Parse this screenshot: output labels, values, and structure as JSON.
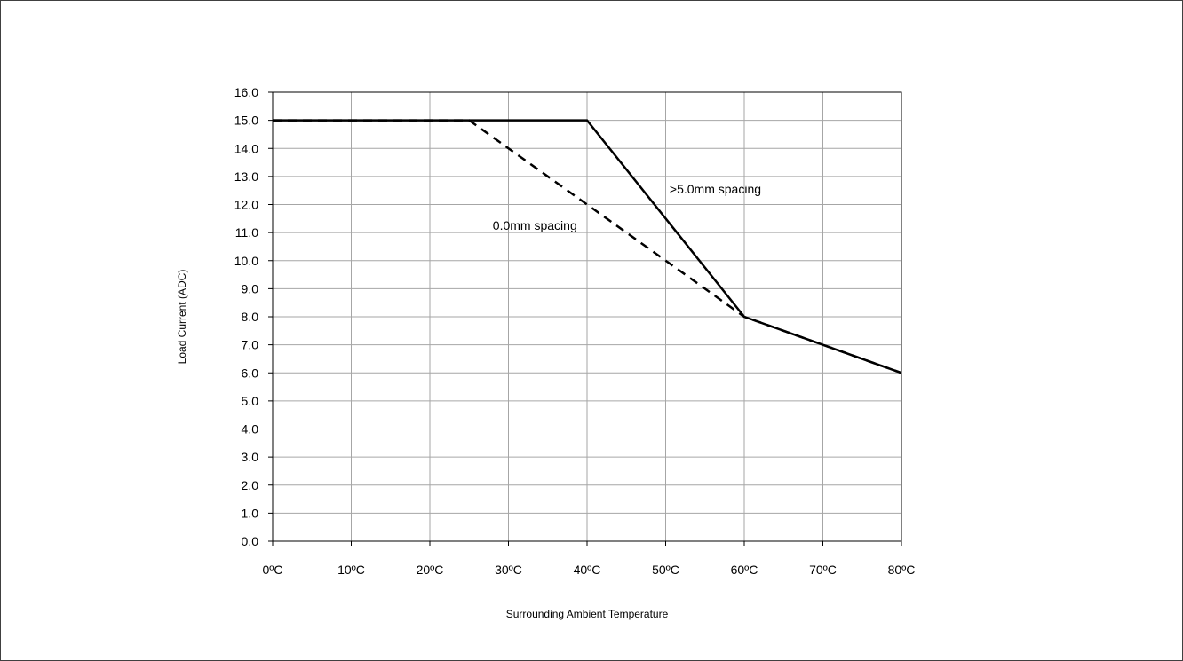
{
  "chart_data": {
    "type": "line",
    "xlabel": "Surrounding Ambient Temperature",
    "ylabel": "Load Current (ADC)",
    "x_tick_labels": [
      "0ºC",
      "10ºC",
      "20ºC",
      "30ºC",
      "40ºC",
      "50ºC",
      "60ºC",
      "70ºC",
      "80ºC"
    ],
    "x_ticks": [
      0,
      10,
      20,
      30,
      40,
      50,
      60,
      70,
      80
    ],
    "y_tick_labels": [
      "0.0",
      "1.0",
      "2.0",
      "3.0",
      "4.0",
      "5.0",
      "6.0",
      "7.0",
      "8.0",
      "9.0",
      "10.0",
      "11.0",
      "12.0",
      "13.0",
      "14.0",
      "15.0",
      "16.0"
    ],
    "xlim": [
      0,
      80
    ],
    "ylim": [
      0,
      16
    ],
    "grid": true,
    "series": [
      {
        "style": "solid",
        "x": [
          0,
          40,
          60,
          80
        ],
        "y": [
          15.0,
          15.0,
          8.0,
          6.0
        ]
      },
      {
        "style": "dashed",
        "x": [
          0,
          25,
          60,
          80
        ],
        "y": [
          15.0,
          15.0,
          8.0,
          6.0
        ]
      }
    ],
    "annotations": [
      {
        "text": ">5.0mm spacing",
        "x": 50.5,
        "y": 12.4
      },
      {
        "text": "0.0mm spacing",
        "x": 28,
        "y": 11.1
      }
    ],
    "colors": {
      "line": "#000000",
      "grid": "#a6a6a6"
    }
  }
}
